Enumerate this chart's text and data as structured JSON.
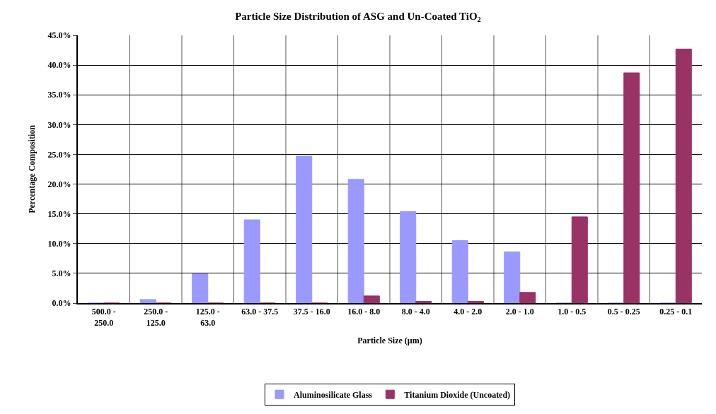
{
  "chart_data": {
    "type": "bar",
    "title": "Particle Size Distribution of ASG and Un-Coated TiO$_{2}$",
    "xlabel": "Particle Size (µm)",
    "ylabel": "Percentage Composition",
    "categories": [
      "500.0 - 250.0",
      "250.0 - 125.0",
      "125.0 - 63.0",
      "63.0 - 37.5",
      "37.5 - 16.0",
      "16.0 - 8.0",
      "8.0 - 4.0",
      "4.0 - 2.0",
      "2.0 - 1.0",
      "1.0 - 0.5",
      "0.5 - 0.25",
      "0.25 - 0.1"
    ],
    "series": [
      {
        "name": "Aluminosilicate Glass",
        "color": "#9999ff",
        "values": [
          0,
          0.6,
          4.9,
          14.0,
          24.7,
          20.8,
          15.4,
          10.5,
          8.6,
          0,
          0,
          0
        ]
      },
      {
        "name": "Titanium Dioxide (Uncoated)",
        "color": "#993366",
        "values": [
          0,
          0,
          0,
          0,
          0,
          1.2,
          0.3,
          0.3,
          1.8,
          14.5,
          38.7,
          42.7
        ]
      }
    ],
    "ylim": [
      0,
      45
    ],
    "yticks": [
      {
        "value": 0,
        "label": "0.0%"
      },
      {
        "value": 5,
        "label": "5.0%"
      },
      {
        "value": 10,
        "label": "10.0%"
      },
      {
        "value": 15,
        "label": "15.0%"
      },
      {
        "value": 20,
        "label": "20.0%"
      },
      {
        "value": 25,
        "label": "25.0%"
      },
      {
        "value": 30,
        "label": "30.0%"
      },
      {
        "value": 35,
        "label": "35.0%"
      },
      {
        "value": 40,
        "label": "40.0%"
      },
      {
        "value": 45,
        "label": "45.0%"
      }
    ],
    "grid": true,
    "legend": "bottom"
  }
}
